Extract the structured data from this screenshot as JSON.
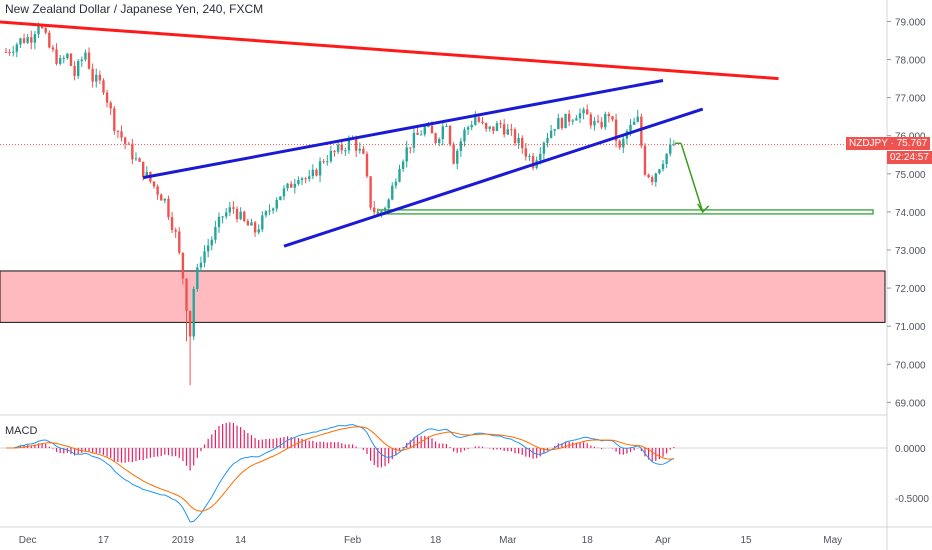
{
  "header": {
    "title": "New Zealand Dollar / Japanese Yen, 240, FXCM"
  },
  "price_tag": {
    "symbol": "NZDJPY",
    "value": "75.767",
    "countdown": "02:24:57"
  },
  "macd_label": "MACD",
  "colors": {
    "up": "#26a69a",
    "down": "#ef5350",
    "red_line": "#ff1a1a",
    "channel": "#1a1ad6",
    "support": "#4caf50",
    "arrow": "#3b9a1a",
    "zone_fill": "#ffb3b8",
    "macd_line": "#2196f3",
    "signal_line": "#ff6d00",
    "hist": "#e91e63",
    "tag_bg": "#ef5350"
  },
  "chart_data": {
    "type": "candlestick",
    "title": "New Zealand Dollar / Japanese Yen, 240, FXCM",
    "x_ticks": [
      "Dec",
      "17",
      "2019",
      "14",
      "Feb",
      "18",
      "Mar",
      "18",
      "Apr",
      "15",
      "May"
    ],
    "y_ticks": [
      "79.000",
      "78.000",
      "77.000",
      "76.000",
      "75.000",
      "74.000",
      "73.000",
      "72.000",
      "71.000",
      "70.000",
      "69.000"
    ],
    "ylim": [
      68.8,
      79.3
    ],
    "last_price": 75.767,
    "demand_zone": {
      "from": 71.1,
      "to": 72.45
    },
    "support_level": 74.0,
    "price_path": [
      {
        "t": 0,
        "p": 78.2
      },
      {
        "t": 4,
        "p": 78.5
      },
      {
        "t": 7,
        "p": 78.6
      },
      {
        "t": 9,
        "p": 79.0
      },
      {
        "t": 12,
        "p": 78.3
      },
      {
        "t": 15,
        "p": 77.9
      },
      {
        "t": 17,
        "p": 78.1
      },
      {
        "t": 19,
        "p": 77.6
      },
      {
        "t": 22,
        "p": 78.2
      },
      {
        "t": 24,
        "p": 77.5
      },
      {
        "t": 27,
        "p": 77.3
      },
      {
        "t": 30,
        "p": 76.3
      },
      {
        "t": 33,
        "p": 75.8
      },
      {
        "t": 37,
        "p": 75.2
      },
      {
        "t": 40,
        "p": 74.8
      },
      {
        "t": 44,
        "p": 74.3
      },
      {
        "t": 47,
        "p": 73.4
      },
      {
        "t": 49,
        "p": 72.3
      },
      {
        "t": 51,
        "p": 70.8
      },
      {
        "t": 52,
        "p": 72.0
      },
      {
        "t": 54,
        "p": 72.8
      },
      {
        "t": 57,
        "p": 73.3
      },
      {
        "t": 60,
        "p": 73.9
      },
      {
        "t": 63,
        "p": 74.1
      },
      {
        "t": 66,
        "p": 73.7
      },
      {
        "t": 69,
        "p": 73.5
      },
      {
        "t": 72,
        "p": 73.9
      },
      {
        "t": 75,
        "p": 74.4
      },
      {
        "t": 78,
        "p": 74.6
      },
      {
        "t": 81,
        "p": 75.0
      },
      {
        "t": 84,
        "p": 74.8
      },
      {
        "t": 88,
        "p": 75.4
      },
      {
        "t": 92,
        "p": 75.6
      },
      {
        "t": 96,
        "p": 75.9
      },
      {
        "t": 99,
        "p": 75.4
      },
      {
        "t": 101,
        "p": 74.2
      },
      {
        "t": 103,
        "p": 73.9
      },
      {
        "t": 106,
        "p": 74.3
      },
      {
        "t": 109,
        "p": 75.3
      },
      {
        "t": 112,
        "p": 75.8
      },
      {
        "t": 116,
        "p": 76.2
      },
      {
        "t": 119,
        "p": 75.9
      },
      {
        "t": 122,
        "p": 76.4
      },
      {
        "t": 124,
        "p": 75.4
      },
      {
        "t": 127,
        "p": 76.1
      },
      {
        "t": 130,
        "p": 76.5
      },
      {
        "t": 133,
        "p": 76.1
      },
      {
        "t": 137,
        "p": 76.3
      },
      {
        "t": 140,
        "p": 76.0
      },
      {
        "t": 143,
        "p": 75.7
      },
      {
        "t": 146,
        "p": 75.3
      },
      {
        "t": 149,
        "p": 75.9
      },
      {
        "t": 152,
        "p": 76.3
      },
      {
        "t": 155,
        "p": 76.4
      },
      {
        "t": 158,
        "p": 76.6
      },
      {
        "t": 161,
        "p": 76.5
      },
      {
        "t": 164,
        "p": 76.2
      },
      {
        "t": 167,
        "p": 76.6
      },
      {
        "t": 170,
        "p": 75.6
      },
      {
        "t": 172,
        "p": 76.1
      },
      {
        "t": 175,
        "p": 76.4
      },
      {
        "t": 177,
        "p": 75.1
      },
      {
        "t": 179,
        "p": 74.9
      },
      {
        "t": 182,
        "p": 75.4
      },
      {
        "t": 185,
        "p": 75.77
      }
    ],
    "trendlines": [
      {
        "name": "resistance",
        "from": {
          "t": -4,
          "p": 79.0
        },
        "to": {
          "t": 214,
          "p": 77.5
        }
      },
      {
        "name": "channel_upper",
        "from": {
          "t": 38,
          "p": 74.9
        },
        "to": {
          "t": 182,
          "p": 77.45
        }
      },
      {
        "name": "channel_lower",
        "from": {
          "t": 77,
          "p": 73.1
        },
        "to": {
          "t": 193,
          "p": 76.7
        }
      }
    ],
    "projection": {
      "from": {
        "t": 187,
        "p": 75.8
      },
      "to": {
        "t": 193,
        "p": 74.0
      }
    },
    "macd": {
      "ylim": [
        -0.75,
        0.3
      ],
      "y_ticks": [
        "0.0000",
        "-0.5000"
      ]
    }
  }
}
